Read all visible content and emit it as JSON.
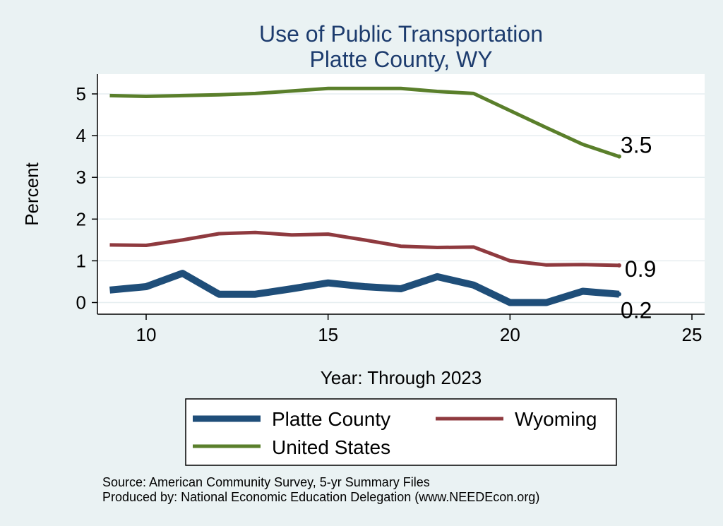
{
  "chart_data": {
    "type": "line",
    "title": "Use of Public Transportation",
    "subtitle": "Platte County, WY",
    "xlabel": "Year: Through 2023",
    "ylabel": "Percent",
    "xlim": [
      9,
      25
    ],
    "ylim": [
      0,
      5
    ],
    "xticks": [
      10,
      15,
      20,
      25
    ],
    "yticks": [
      0,
      1,
      2,
      3,
      4,
      5
    ],
    "grid": true,
    "legend_position": "bottom",
    "x": [
      9,
      10,
      11,
      12,
      13,
      14,
      15,
      16,
      17,
      18,
      19,
      20,
      21,
      22,
      23
    ],
    "series": [
      {
        "name": "Platte County",
        "color": "#1f4e79",
        "values": [
          0.3,
          0.38,
          0.7,
          0.2,
          0.2,
          0.33,
          0.47,
          0.38,
          0.33,
          0.62,
          0.42,
          0.0,
          0.0,
          0.27,
          0.2
        ],
        "end_label": "0.2"
      },
      {
        "name": "Wyoming",
        "color": "#8f3a3f",
        "values": [
          1.38,
          1.37,
          1.5,
          1.65,
          1.68,
          1.62,
          1.64,
          1.5,
          1.35,
          1.32,
          1.33,
          1.0,
          0.9,
          0.91,
          0.89
        ],
        "end_label": "0.9"
      },
      {
        "name": "United States",
        "color": "#5a7f2b",
        "values": [
          4.96,
          4.94,
          4.96,
          4.98,
          5.01,
          5.07,
          5.13,
          5.13,
          5.13,
          5.06,
          5.01,
          4.6,
          4.19,
          3.79,
          3.5
        ],
        "end_label": "3.5"
      }
    ]
  },
  "footer": {
    "source": "Source: American Community Survey, 5-yr Summary Files",
    "produced": "Produced by: National Economic Education Delegation (www.NEEDEcon.org)"
  }
}
